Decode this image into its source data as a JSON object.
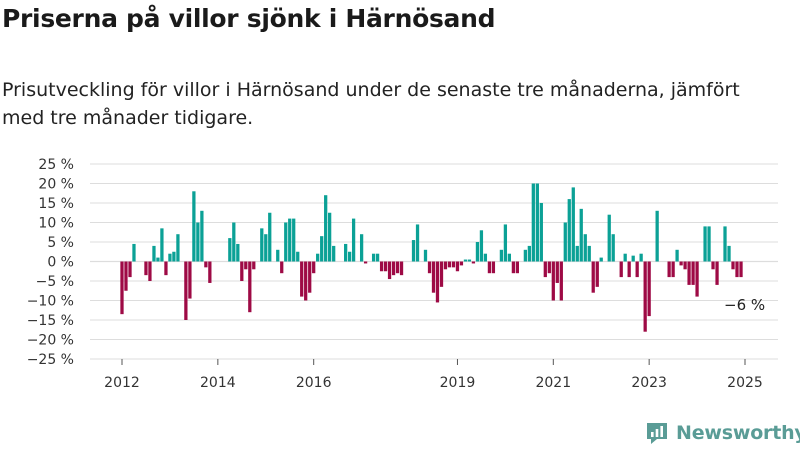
{
  "title": "Priserna på villor sjönk i Härnösand",
  "subtitle": "Prisutveckling för villor i Härnösand under de senaste tre månaderna, jämfört med tre månader tidigare.",
  "brand": "Newsworthy",
  "colors": {
    "positive": "#0ba196",
    "negative": "#9e0a45",
    "grid": "#dddddd",
    "brand": "#5a9c96"
  },
  "chart_data": {
    "type": "bar",
    "ylim": [
      -25,
      25
    ],
    "y_ticks": [
      25,
      20,
      15,
      10,
      5,
      0,
      -5,
      -10,
      -15,
      -20,
      -25
    ],
    "y_tick_labels": [
      "25 %",
      "20 %",
      "15 %",
      "10 %",
      "5 %",
      "0 %",
      "−5 %",
      "−10 %",
      "−15 %",
      "−20 %",
      "−25 %"
    ],
    "x_ticks": [
      2012,
      2014,
      2016,
      2019,
      2021,
      2023,
      2025
    ],
    "x_tick_labels": [
      "2012",
      "2014",
      "2016",
      "2019",
      "2021",
      "2023",
      "2025"
    ],
    "annotation": "−6 %",
    "x": [
      2012.0,
      2012.083,
      2012.167,
      2012.25,
      2012.333,
      2012.417,
      2012.5,
      2012.583,
      2012.667,
      2012.75,
      2012.833,
      2012.917,
      2013.0,
      2013.083,
      2013.167,
      2013.25,
      2013.333,
      2013.417,
      2013.5,
      2013.583,
      2013.667,
      2013.75,
      2013.833,
      2013.917,
      2014.0,
      2014.083,
      2014.167,
      2014.25,
      2014.333,
      2014.417,
      2014.5,
      2014.583,
      2014.667,
      2014.75,
      2014.833,
      2014.917,
      2015.0,
      2015.083,
      2015.167,
      2015.25,
      2015.333,
      2015.417,
      2015.5,
      2015.583,
      2015.667,
      2015.75,
      2015.833,
      2015.917,
      2016.0,
      2016.083,
      2016.167,
      2016.25,
      2016.333,
      2016.417,
      2016.5,
      2016.583,
      2016.667,
      2016.75,
      2016.833,
      2016.917,
      2017.0,
      2017.083,
      2017.167,
      2017.25,
      2017.333,
      2017.417,
      2017.5,
      2017.583,
      2017.667,
      2017.75,
      2017.833,
      2017.917,
      2018.0,
      2018.083,
      2018.167,
      2018.25,
      2018.333,
      2018.417,
      2018.5,
      2018.583,
      2018.667,
      2018.75,
      2018.833,
      2018.917,
      2019.0,
      2019.083,
      2019.167,
      2019.25,
      2019.333,
      2019.417,
      2019.5,
      2019.583,
      2019.667,
      2019.75,
      2019.833,
      2019.917,
      2020.0,
      2020.083,
      2020.167,
      2020.25,
      2020.333,
      2020.417,
      2020.5,
      2020.583,
      2020.667,
      2020.75,
      2020.833,
      2020.917,
      2021.0,
      2021.083,
      2021.167,
      2021.25,
      2021.333,
      2021.417,
      2021.5,
      2021.583,
      2021.667,
      2021.75,
      2021.833,
      2021.917,
      2022.0,
      2022.083,
      2022.167,
      2022.25,
      2022.333,
      2022.417,
      2022.5,
      2022.583,
      2022.667,
      2022.75,
      2022.833,
      2022.917,
      2023.0,
      2023.083,
      2023.167,
      2023.25,
      2023.333,
      2023.417,
      2023.5,
      2023.583,
      2023.667,
      2023.75,
      2023.833,
      2023.917,
      2024.0,
      2024.083,
      2024.167,
      2024.25,
      2024.333,
      2024.417,
      2024.5,
      2024.583,
      2024.667,
      2024.75,
      2024.833,
      2024.917
    ],
    "values": [
      -13.5,
      -7.5,
      -4.0,
      4.5,
      0,
      0,
      -3.5,
      -5.0,
      4.0,
      1.0,
      8.5,
      -3.5,
      2.0,
      2.5,
      7.0,
      0,
      -15.0,
      -9.5,
      18.0,
      10.0,
      13.0,
      -1.5,
      -5.5,
      0,
      0,
      0,
      0,
      6.0,
      10.0,
      4.5,
      -5.0,
      -2.0,
      -13.0,
      -2.0,
      0,
      8.5,
      7.0,
      12.5,
      0,
      3.0,
      -3.0,
      10.0,
      11.0,
      11.0,
      2.5,
      -9.0,
      -10.0,
      -8.0,
      -3.0,
      2.0,
      6.5,
      17.0,
      12.5,
      4.0,
      0,
      0,
      4.5,
      2.5,
      11.0,
      0,
      7.0,
      -0.5,
      0,
      2.0,
      2.0,
      -2.5,
      -2.5,
      -4.5,
      -3.5,
      -3.0,
      -3.5,
      0,
      0,
      5.5,
      9.5,
      0,
      3.0,
      -3.0,
      -8.0,
      -10.5,
      -6.5,
      -2.0,
      -1.5,
      -1.5,
      -2.5,
      -1.0,
      0.5,
      0.5,
      -0.5,
      5.0,
      8.0,
      2.0,
      -3.0,
      -3.0,
      0,
      3.0,
      9.5,
      2.0,
      -3.0,
      -3.0,
      0,
      3.0,
      4.0,
      20.0,
      20.0,
      15.0,
      -4.0,
      -3.0,
      -10.0,
      -5.5,
      -10.0,
      10.0,
      16.0,
      19.0,
      4.0,
      13.5,
      7.0,
      4.0,
      -8.0,
      -6.5,
      1.0,
      0,
      12.0,
      7.0,
      0,
      -4.0,
      2.0,
      -4.0,
      1.5,
      -4.0,
      2.0,
      -18.0,
      -14.0,
      0,
      13.0,
      0,
      0,
      -4.0,
      -4.0,
      3.0,
      -1.0,
      -2.0,
      -6.0,
      -6.0,
      -9.0,
      0,
      9.0,
      9.0,
      -2.0,
      -6.0,
      0,
      9.0,
      4.0,
      -2.0,
      -4.0,
      -4.0
    ]
  }
}
